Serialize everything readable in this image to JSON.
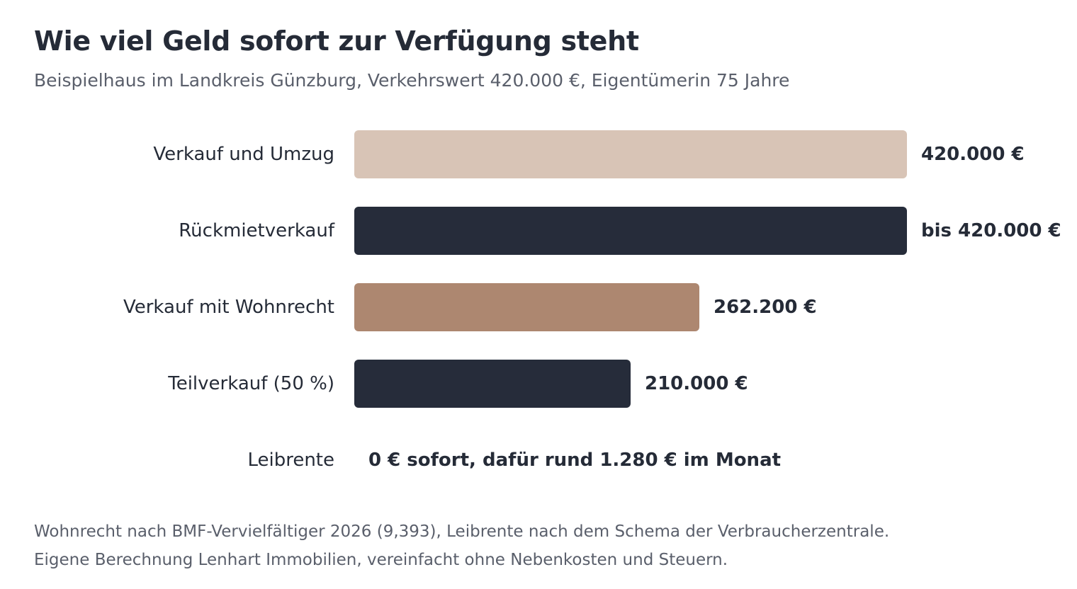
{
  "chart_data": {
    "type": "bar",
    "orientation": "horizontal",
    "title": "Wie viel Geld sofort zur Verfügung steht",
    "subtitle": "Beispielhaus im Landkreis Günzburg, Verkehrswert 420.000 €, Eigentümerin 75 Jahre",
    "categories": [
      "Verkauf und Umzug",
      "Rückmietverkauf",
      "Verkauf mit Wohnrecht",
      "Teilverkauf (50 %)",
      "Leibrente"
    ],
    "values": [
      420000,
      420000,
      262200,
      210000,
      0
    ],
    "value_labels": [
      "420.000 €",
      "bis 420.000 €",
      "262.200 €",
      "210.000 €",
      "0 € sofort, dafür rund 1.280 € im Monat"
    ],
    "colors": [
      "#d8c4b6",
      "#262c3a",
      "#ad8770",
      "#262c3a",
      null
    ],
    "xlim": [
      0,
      420000
    ],
    "grid": false,
    "legend": "none"
  },
  "footnotes": [
    "Wohnrecht nach BMF-Vervielfältiger 2026 (9,393), Leibrente nach dem Schema der Verbraucherzentrale.",
    "Eigene Berechnung Lenhart Immobilien, vereinfacht ohne Nebenkosten und Steuern."
  ]
}
